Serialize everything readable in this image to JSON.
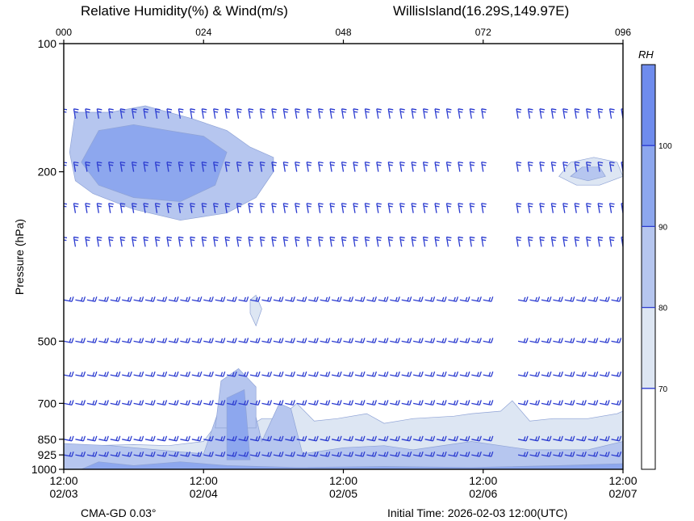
{
  "header": {
    "title_left": "Relative Humidity(%) & Wind(m/s)",
    "title_right": "WillisIsland(16.29S,149.97E)"
  },
  "footer": {
    "model": "CMA-GD 0.03°",
    "init_time": "Initial Time: 2026-02-03 12:00(UTC)"
  },
  "chart_data": {
    "type": "heatmap",
    "xlabel": "",
    "ylabel": "Pressure (hPa)",
    "y_scale": "log",
    "ylim": [
      1000,
      100
    ],
    "xlim": [
      0,
      96
    ],
    "top_ticks": [
      {
        "x": 0,
        "label": "000"
      },
      {
        "x": 24,
        "label": "024"
      },
      {
        "x": 48,
        "label": "048"
      },
      {
        "x": 72,
        "label": "072"
      },
      {
        "x": 96,
        "label": "096"
      }
    ],
    "bottom_ticks": [
      {
        "x": 0,
        "time": "12:00",
        "date": "02/03"
      },
      {
        "x": 24,
        "time": "12:00",
        "date": "02/04"
      },
      {
        "x": 48,
        "time": "12:00",
        "date": "02/05"
      },
      {
        "x": 72,
        "time": "12:00",
        "date": "02/06"
      },
      {
        "x": 96,
        "time": "12:00",
        "date": "02/07"
      }
    ],
    "y_ticks": [
      100,
      200,
      500,
      700,
      850,
      925,
      1000
    ],
    "barb_levels": [
      150,
      200,
      250,
      300,
      400,
      500,
      600,
      700,
      850,
      925
    ],
    "missing_forecast_hours": [
      73,
      74,
      75,
      76
    ],
    "colorbar": {
      "title": "RH",
      "levels": [
        70,
        80,
        90,
        100
      ],
      "colors": [
        "#ffffff",
        "#dde6f3",
        "#b6c6ef",
        "#8da7ee",
        "#6f8ced"
      ]
    },
    "rh_regions": [
      {
        "level_class": 1,
        "points": [
          [
            0,
            1000
          ],
          [
            0,
            880
          ],
          [
            5,
            880
          ],
          [
            12,
            875
          ],
          [
            18,
            880
          ],
          [
            24,
            860
          ],
          [
            26,
            790
          ],
          [
            29,
            760
          ],
          [
            32,
            790
          ],
          [
            34,
            760
          ],
          [
            37,
            760
          ],
          [
            40,
            700
          ],
          [
            43,
            770
          ],
          [
            47,
            760
          ],
          [
            52,
            740
          ],
          [
            55,
            780
          ],
          [
            60,
            760
          ],
          [
            67,
            750
          ],
          [
            70,
            740
          ],
          [
            75,
            730
          ],
          [
            77,
            690
          ],
          [
            80,
            770
          ],
          [
            84,
            760
          ],
          [
            90,
            760
          ],
          [
            95,
            740
          ],
          [
            96,
            730
          ],
          [
            96,
            1000
          ]
        ]
      },
      {
        "level_class": 2,
        "points": [
          [
            0,
            1000
          ],
          [
            0,
            870
          ],
          [
            8,
            880
          ],
          [
            16,
            900
          ],
          [
            24,
            920
          ],
          [
            27,
            700
          ],
          [
            29,
            610
          ],
          [
            32,
            660
          ],
          [
            34,
            860
          ],
          [
            37,
            700
          ],
          [
            39,
            720
          ],
          [
            41,
            920
          ],
          [
            48,
            890
          ],
          [
            55,
            880
          ],
          [
            60,
            900
          ],
          [
            70,
            860
          ],
          [
            80,
            900
          ],
          [
            90,
            900
          ],
          [
            96,
            860
          ],
          [
            96,
            1000
          ]
        ]
      },
      {
        "level_class": 2,
        "points": [
          [
            26,
            800
          ],
          [
            27,
            620
          ],
          [
            30,
            580
          ],
          [
            33,
            640
          ],
          [
            33,
            800
          ]
        ]
      },
      {
        "level_class": 3,
        "points": [
          [
            28,
            950
          ],
          [
            28,
            680
          ],
          [
            31,
            650
          ],
          [
            32,
            950
          ]
        ]
      },
      {
        "level_class": 3,
        "points": [
          [
            3,
            1000
          ],
          [
            6,
            960
          ],
          [
            12,
            980
          ],
          [
            20,
            960
          ],
          [
            28,
            980
          ],
          [
            40,
            990
          ],
          [
            55,
            985
          ],
          [
            70,
            990
          ],
          [
            85,
            980
          ],
          [
            96,
            970
          ],
          [
            96,
            1000
          ]
        ]
      },
      {
        "level_class": 2,
        "points": [
          [
            1,
            180
          ],
          [
            2,
            145
          ],
          [
            8,
            145
          ],
          [
            14,
            140
          ],
          [
            22,
            150
          ],
          [
            28,
            160
          ],
          [
            32,
            175
          ],
          [
            36,
            185
          ],
          [
            36,
            200
          ],
          [
            33,
            230
          ],
          [
            28,
            250
          ],
          [
            20,
            260
          ],
          [
            12,
            245
          ],
          [
            5,
            225
          ],
          [
            2,
            210
          ]
        ]
      },
      {
        "level_class": 3,
        "points": [
          [
            3,
            190
          ],
          [
            6,
            160
          ],
          [
            12,
            155
          ],
          [
            18,
            160
          ],
          [
            24,
            165
          ],
          [
            28,
            180
          ],
          [
            26,
            215
          ],
          [
            20,
            235
          ],
          [
            12,
            230
          ],
          [
            6,
            215
          ]
        ]
      },
      {
        "level_class": 1,
        "points": [
          [
            85,
            205
          ],
          [
            87,
            190
          ],
          [
            91,
            185
          ],
          [
            95,
            190
          ],
          [
            96,
            205
          ],
          [
            92,
            215
          ],
          [
            88,
            215
          ]
        ]
      },
      {
        "level_class": 2,
        "points": [
          [
            87,
            205
          ],
          [
            89,
            195
          ],
          [
            92,
            195
          ],
          [
            93,
            205
          ],
          [
            90,
            210
          ]
        ]
      },
      {
        "level_class": 1,
        "points": [
          [
            32,
            400
          ],
          [
            33,
            390
          ],
          [
            34,
            420
          ],
          [
            33,
            460
          ],
          [
            32,
            430
          ]
        ]
      }
    ]
  }
}
